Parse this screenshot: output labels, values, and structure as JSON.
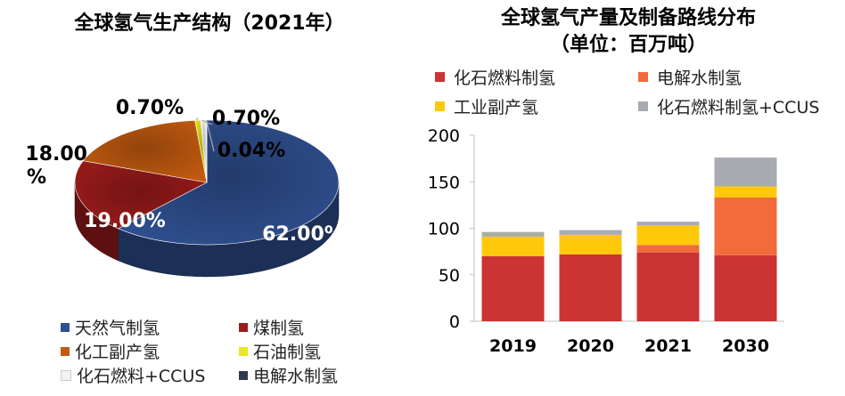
{
  "pie": {
    "title": "全球氢气生产结构（2021年）",
    "slice_labels": [
      "62.00%",
      "19.00%",
      "18.00\n%",
      "0.70%",
      "0.70%",
      "0.04%"
    ],
    "legend": [
      {
        "label": "天然气制氢",
        "color": "#2F4F8F"
      },
      {
        "label": "煤制氢",
        "color": "#9B1B1B"
      },
      {
        "label": "化工副产氢",
        "color": "#C25A10"
      },
      {
        "label": "石油制氢",
        "color": "#E8E81A"
      },
      {
        "label": "化石燃料+CCUS",
        "color": "#F2F2F2"
      },
      {
        "label": "电解水制氢",
        "color": "#2E3A4F"
      }
    ]
  },
  "bar": {
    "title_line1": "全球氢气产量及制备路线分布",
    "title_line2": "（单位：百万吨）",
    "legend": [
      {
        "label": "化石燃料制氢",
        "color": "#CC3333"
      },
      {
        "label": "电解水制氢",
        "color": "#F26B3A"
      },
      {
        "label": "工业副产氢",
        "color": "#FFC80A"
      },
      {
        "label": "化石燃料制氢+CCUS",
        "color": "#A9ABB3"
      }
    ]
  },
  "chart_data": [
    {
      "type": "pie",
      "title": "全球氢气生产结构（2021年）",
      "categories": [
        "天然气制氢",
        "煤制氢",
        "化工副产氢",
        "石油制氢",
        "化石燃料+CCUS",
        "电解水制氢"
      ],
      "values": [
        62.0,
        19.0,
        18.0,
        0.7,
        0.7,
        0.04
      ],
      "unit": "%"
    },
    {
      "type": "bar",
      "stacked": true,
      "title": "全球氢气产量及制备路线分布（单位：百万吨）",
      "categories": [
        "2019",
        "2020",
        "2021",
        "2030"
      ],
      "series": [
        {
          "name": "化石燃料制氢",
          "values": [
            70,
            72,
            74,
            71
          ]
        },
        {
          "name": "电解水制氢",
          "values": [
            0,
            0,
            8,
            62
          ]
        },
        {
          "name": "工业副产氢",
          "values": [
            21,
            21,
            21,
            12
          ]
        },
        {
          "name": "化石燃料制氢+CCUS",
          "values": [
            5,
            5,
            4,
            31
          ]
        }
      ],
      "yticks": [
        "0",
        "50",
        "100",
        "150",
        "200"
      ],
      "ylim": [
        0,
        200
      ],
      "xlabel": "",
      "ylabel": ""
    }
  ]
}
